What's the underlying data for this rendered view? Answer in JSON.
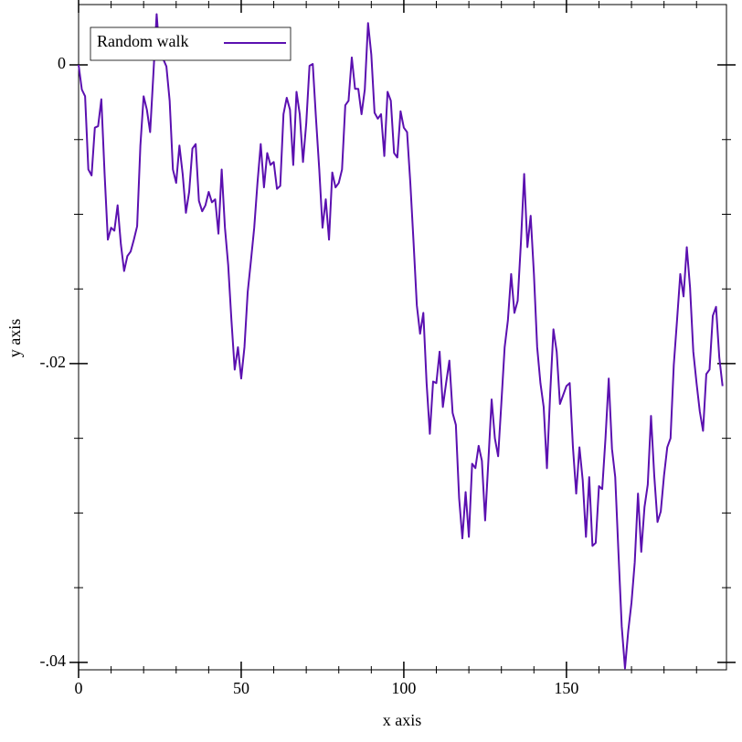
{
  "chart_data": {
    "type": "line",
    "xlabel": "x axis",
    "ylabel": "y axis",
    "legend": "top-left",
    "xlim": [
      0,
      199.2
    ],
    "ylim": [
      -0.0405,
      0.00404
    ],
    "xticks": [
      0,
      50,
      100,
      150
    ],
    "xminorticks": [
      10,
      20,
      30,
      40,
      60,
      70,
      80,
      90,
      110,
      120,
      130,
      140,
      160,
      170,
      180,
      190
    ],
    "yticks": [
      {
        "value": 0,
        "label": "0"
      },
      {
        "value": -0.02,
        "label": "-.02"
      },
      {
        "value": -0.04,
        "label": "-.04"
      }
    ],
    "yminorticks": [
      -0.005,
      -0.01,
      -0.015,
      -0.025,
      -0.03,
      -0.035
    ],
    "x": [
      0,
      1,
      2,
      3,
      4,
      5,
      6,
      7,
      8,
      9,
      10,
      11,
      12,
      13,
      14,
      15,
      16,
      17,
      18,
      19,
      20,
      21,
      22,
      23,
      24,
      25,
      26,
      27,
      28,
      29,
      30,
      31,
      32,
      33,
      34,
      35,
      36,
      37,
      38,
      39,
      40,
      41,
      42,
      43,
      44,
      45,
      46,
      47,
      48,
      49,
      50,
      51,
      52,
      53,
      54,
      55,
      56,
      57,
      58,
      59,
      60,
      61,
      62,
      63,
      64,
      65,
      66,
      67,
      68,
      69,
      70,
      71,
      72,
      73,
      74,
      75,
      76,
      77,
      78,
      79,
      80,
      81,
      82,
      83,
      84,
      85,
      86,
      87,
      88,
      89,
      90,
      91,
      92,
      93,
      94,
      95,
      96,
      97,
      98,
      99,
      100,
      101,
      102,
      103,
      104,
      105,
      106,
      107,
      108,
      109,
      110,
      111,
      112,
      113,
      114,
      115,
      116,
      117,
      118,
      119,
      120,
      121,
      122,
      123,
      124,
      125,
      126,
      127,
      128,
      129,
      130,
      131,
      132,
      133,
      134,
      135,
      136,
      137,
      138,
      139,
      140,
      141,
      142,
      143,
      144,
      145,
      146,
      147,
      148,
      149,
      150,
      151,
      152,
      153,
      154,
      155,
      156,
      157,
      158,
      159,
      160,
      161,
      162,
      163,
      164,
      165,
      166,
      167,
      168,
      169,
      170,
      171,
      172,
      173,
      174,
      175,
      176,
      177,
      178,
      179,
      180,
      181,
      182,
      183,
      184,
      185,
      186,
      187,
      188,
      189,
      190,
      191,
      192,
      193,
      194,
      195,
      196,
      197,
      198
    ],
    "series": [
      {
        "name": "Random walk",
        "color": "#5b10b0",
        "values": [
          0,
          -0.00165,
          -0.0021,
          -0.007,
          -0.0074,
          -0.0042,
          -0.0041,
          -0.0023,
          -0.0073,
          -0.0117,
          -0.0109,
          -0.0111,
          -0.0094,
          -0.012,
          -0.0138,
          -0.0128,
          -0.0125,
          -0.0117,
          -0.0108,
          -0.0054,
          -0.0021,
          -0.003,
          -0.0045,
          -0.0006,
          0.0034,
          0.00055,
          0.0004,
          -0.0001,
          -0.0024,
          -0.007,
          -0.0079,
          -0.0054,
          -0.0073,
          -0.0099,
          -0.0085,
          -0.0056,
          -0.0053,
          -0.0091,
          -0.0098,
          -0.0094,
          -0.0085,
          -0.0092,
          -0.009,
          -0.0113,
          -0.007,
          -0.0109,
          -0.0134,
          -0.0171,
          -0.0204,
          -0.0189,
          -0.021,
          -0.0189,
          -0.0152,
          -0.0131,
          -0.0109,
          -0.0079,
          -0.0053,
          -0.0082,
          -0.0059,
          -0.0067,
          -0.0065,
          -0.0083,
          -0.0081,
          -0.0033,
          -0.0022,
          -0.003,
          -0.0067,
          -0.0018,
          -0.0033,
          -0.0065,
          -0.0039,
          -6e-05,
          6e-05,
          -0.0036,
          -0.007,
          -0.0109,
          -0.009,
          -0.0117,
          -0.0072,
          -0.0082,
          -0.0079,
          -0.007,
          -0.0027,
          -0.0024,
          0.0005,
          -0.0016,
          -0.0016,
          -0.0033,
          -0.00165,
          0.0028,
          0.0007,
          -0.0032,
          -0.0036,
          -0.0033,
          -0.0061,
          -0.0018,
          -0.0024,
          -0.0059,
          -0.0062,
          -0.0031,
          -0.0042,
          -0.0045,
          -0.0079,
          -0.0119,
          -0.0161,
          -0.018,
          -0.0166,
          -0.0213,
          -0.0247,
          -0.0212,
          -0.0213,
          -0.0192,
          -0.0229,
          -0.0213,
          -0.0198,
          -0.0233,
          -0.0241,
          -0.029,
          -0.0317,
          -0.0286,
          -0.0316,
          -0.0267,
          -0.027,
          -0.0255,
          -0.0265,
          -0.0305,
          -0.0265,
          -0.0224,
          -0.025,
          -0.0262,
          -0.0226,
          -0.0189,
          -0.0171,
          -0.014,
          -0.0166,
          -0.0158,
          -0.0119,
          -0.0073,
          -0.0122,
          -0.0101,
          -0.014,
          -0.0189,
          -0.0213,
          -0.0229,
          -0.027,
          -0.022,
          -0.0177,
          -0.0192,
          -0.0227,
          -0.0221,
          -0.0215,
          -0.0213,
          -0.0256,
          -0.0287,
          -0.0256,
          -0.0278,
          -0.0316,
          -0.0276,
          -0.0322,
          -0.032,
          -0.0282,
          -0.0284,
          -0.025,
          -0.021,
          -0.0257,
          -0.0276,
          -0.0327,
          -0.0376,
          -0.0404,
          -0.0379,
          -0.036,
          -0.0333,
          -0.0287,
          -0.0326,
          -0.0296,
          -0.0281,
          -0.0235,
          -0.0275,
          -0.0306,
          -0.0299,
          -0.0275,
          -0.0256,
          -0.025,
          -0.0201,
          -0.0171,
          -0.014,
          -0.0155,
          -0.0122,
          -0.0149,
          -0.0192,
          -0.0213,
          -0.0232,
          -0.0245,
          -0.0207,
          -0.0204,
          -0.0168,
          -0.0162,
          -0.0196,
          -0.0215
        ]
      }
    ]
  }
}
